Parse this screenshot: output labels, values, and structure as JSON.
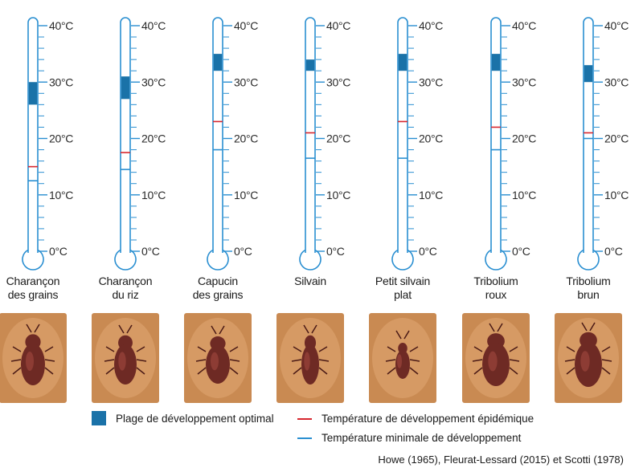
{
  "chart_data": {
    "type": "thermometer",
    "unit": "°C",
    "ylim": [
      0,
      40
    ],
    "ticks": [
      "40°C",
      "30°C",
      "20°C",
      "10°C",
      "0°C"
    ],
    "species": [
      {
        "name": [
          "Charançon",
          "des grains"
        ],
        "optimal_range": [
          26,
          30
        ],
        "epidemic_temp": 15,
        "min_temp": 12.5
      },
      {
        "name": [
          "Charançon",
          "du riz"
        ],
        "optimal_range": [
          27,
          31
        ],
        "epidemic_temp": 17.5,
        "min_temp": 14.5
      },
      {
        "name": [
          "Capucin",
          "des grains"
        ],
        "optimal_range": [
          32,
          35
        ],
        "epidemic_temp": 23,
        "min_temp": 18
      },
      {
        "name": [
          "Silvain"
        ],
        "optimal_range": [
          32,
          34
        ],
        "epidemic_temp": 21,
        "min_temp": 16.5
      },
      {
        "name": [
          "Petit silvain",
          "plat"
        ],
        "optimal_range": [
          32,
          35
        ],
        "epidemic_temp": 23,
        "min_temp": 16.5
      },
      {
        "name": [
          "Tribolium",
          "roux"
        ],
        "optimal_range": [
          32,
          35
        ],
        "epidemic_temp": 22,
        "min_temp": 18
      },
      {
        "name": [
          "Tribolium",
          "brun"
        ],
        "optimal_range": [
          30,
          33
        ],
        "epidemic_temp": 21,
        "min_temp": 20
      }
    ],
    "legend": [
      {
        "label": "Plage de développement optimal",
        "color": "#1a72a8",
        "kind": "box"
      },
      {
        "label": "Température de développement épidémique",
        "color": "#d7262e",
        "kind": "line"
      },
      {
        "label": "Température minimale de développement",
        "color": "#2a8fd1",
        "kind": "line"
      }
    ]
  },
  "colors": {
    "thermometer_outline": "#2a8fd1",
    "optimal": "#1a72a8",
    "epidemic": "#d7262e",
    "minimum": "#2a8fd1",
    "tick": "#2a8fd1",
    "tick_label": "#2a2a2a",
    "photo_bg": "#c98a52",
    "insect_body": "#6e2a24"
  },
  "source": "Howe (1965), Fleurat-Lessard (2015) et Scotti (1978)"
}
